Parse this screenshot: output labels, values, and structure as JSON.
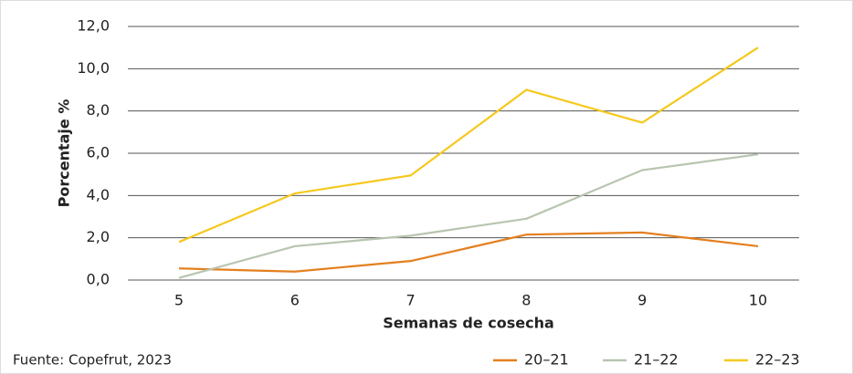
{
  "chart_data": {
    "type": "line",
    "categories": [
      "5",
      "6",
      "7",
      "8",
      "9",
      "10"
    ],
    "series": [
      {
        "name": "20–21",
        "color": "#e47f1e",
        "values": [
          0.55,
          0.4,
          0.9,
          2.15,
          2.25,
          1.6
        ]
      },
      {
        "name": "21–22",
        "color": "#b7c5b0",
        "values": [
          0.1,
          1.6,
          2.1,
          2.9,
          5.2,
          5.95
        ]
      },
      {
        "name": "22–23",
        "color": "#f6c81c",
        "values": [
          1.8,
          4.1,
          4.95,
          9.0,
          7.45,
          11.0
        ]
      }
    ],
    "ylim": [
      0,
      12
    ],
    "yticks": [
      {
        "value": 0,
        "label": "0,0"
      },
      {
        "value": 2,
        "label": "2,0"
      },
      {
        "value": 4,
        "label": "4,0"
      },
      {
        "value": 6,
        "label": "6,0"
      },
      {
        "value": 8,
        "label": "8,0"
      },
      {
        "value": 10,
        "label": "10,0"
      },
      {
        "value": 12,
        "label": "12,0"
      }
    ],
    "grid": true,
    "y_label": "Porcentaje %",
    "x_label": "Semanas de cosecha",
    "source": "Fuente: Copefrut, 2023",
    "legend": "bottom-right"
  }
}
